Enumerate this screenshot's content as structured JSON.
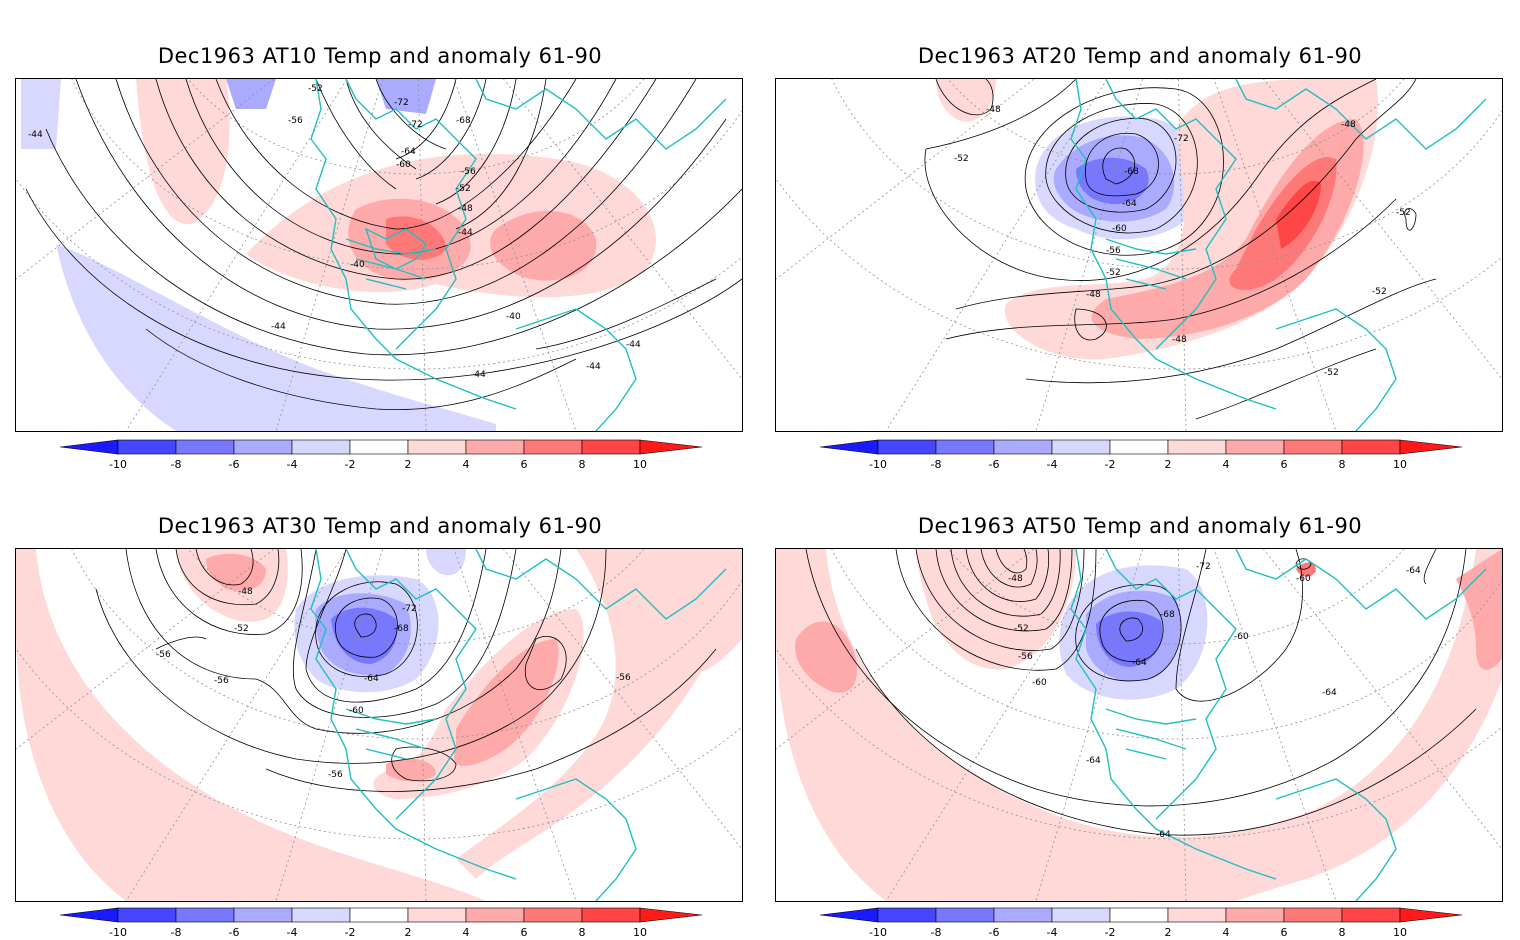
{
  "panels": [
    {
      "id": "at10",
      "title": "Dec1963 AT10 Temp and anomaly 61-90",
      "contour_labels": [
        "-52",
        "-72",
        "-72",
        "-68",
        "-56",
        "-64",
        "-60",
        "-56",
        "-52",
        "-48",
        "-44",
        "-40",
        "-40",
        "-44",
        "-44",
        "-44",
        "-44",
        "-44"
      ]
    },
    {
      "id": "at20",
      "title": "Dec1963 AT20 Temp and anomaly 61-90",
      "contour_labels": [
        "-48",
        "-72",
        "-52",
        "-68",
        "-64",
        "-60",
        "-56",
        "-52",
        "-48",
        "-48",
        "-52",
        "-52",
        "-52",
        "-48"
      ]
    },
    {
      "id": "at30",
      "title": "Dec1963 AT30 Temp and anomaly 61-90",
      "contour_labels": [
        "-48",
        "-72",
        "-52",
        "-68",
        "-56",
        "-64",
        "-56",
        "-60",
        "-56",
        "-56"
      ]
    },
    {
      "id": "at50",
      "title": "Dec1963 AT50 Temp and anomaly 61-90",
      "contour_labels": [
        "-72",
        "-60",
        "-64",
        "-48",
        "-52",
        "-68",
        "-56",
        "-60",
        "-64",
        "-60",
        "-64",
        "-64",
        "-64"
      ]
    }
  ],
  "colorbar": {
    "labels": [
      "-10",
      "-8",
      "-6",
      "-4",
      "-2",
      "2",
      "4",
      "6",
      "8",
      "10"
    ],
    "colors": {
      "neg5": "#1a1aff",
      "neg4": "#4646ff",
      "neg3": "#7878ff",
      "neg2": "#aaaaff",
      "neg1": "#d8d8ff",
      "zero": "#ffffff",
      "pos1": "#ffd8d8",
      "pos2": "#ffaaaa",
      "pos3": "#ff7878",
      "pos4": "#ff4646",
      "pos5": "#ff1a1a"
    }
  },
  "colors": {
    "coast": "#20c0c0",
    "contour": "#000000",
    "grid": "#909090"
  }
}
